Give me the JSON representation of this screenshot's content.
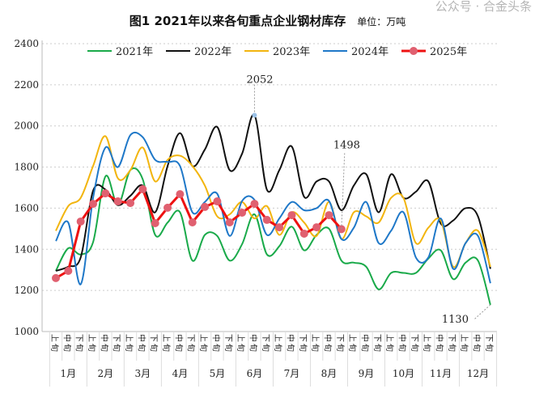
{
  "chart_data": {
    "type": "line",
    "title": "图1  2021年以来各旬重点企业钢材库存",
    "unit": "单位：万吨",
    "ylim": [
      1000,
      2400
    ],
    "yticks": [
      1000,
      1200,
      1400,
      1600,
      1800,
      2000,
      2200,
      2400
    ],
    "grid": "horizontal dotted",
    "legend": "top",
    "months": [
      "1月",
      "2月",
      "3月",
      "4月",
      "5月",
      "6月",
      "7月",
      "8月",
      "9月",
      "10月",
      "11月",
      "12月"
    ],
    "periods": [
      "上旬",
      "中旬",
      "下旬"
    ],
    "series": [
      {
        "name": "2021年",
        "color": "#1aaa4a",
        "values": [
          1295,
          1405,
          1375,
          1435,
          1755,
          1615,
          1785,
          1740,
          1470,
          1530,
          1580,
          1345,
          1470,
          1465,
          1345,
          1425,
          1570,
          1375,
          1415,
          1510,
          1395,
          1470,
          1500,
          1345,
          1335,
          1315,
          1205,
          1285,
          1285,
          1285,
          1355,
          1395,
          1255,
          1335,
          1345,
          1130
        ]
      },
      {
        "name": "2022年",
        "color": "#111111",
        "values": [
          1295,
          1315,
          1360,
          1685,
          1690,
          1615,
          1660,
          1710,
          1580,
          1805,
          1965,
          1805,
          1885,
          1995,
          1785,
          1865,
          2052,
          1690,
          1785,
          1900,
          1655,
          1730,
          1730,
          1590,
          1710,
          1765,
          1580,
          1765,
          1650,
          1680,
          1730,
          1525,
          1540,
          1600,
          1560,
          1305
        ]
      },
      {
        "name": "2023年",
        "color": "#f2b50f",
        "values": [
          1490,
          1610,
          1650,
          1805,
          1950,
          1745,
          1785,
          1895,
          1730,
          1835,
          1855,
          1805,
          1710,
          1560,
          1570,
          1630,
          1550,
          1610,
          1470,
          1580,
          1530,
          1465,
          1630,
          1450,
          1580,
          1560,
          1530,
          1650,
          1650,
          1430,
          1505,
          1540,
          1315,
          1430,
          1490,
          1315
        ]
      },
      {
        "name": "2024年",
        "color": "#1f78c8",
        "values": [
          1440,
          1530,
          1230,
          1650,
          1895,
          1800,
          1955,
          1945,
          1835,
          1825,
          1805,
          1580,
          1630,
          1670,
          1465,
          1635,
          1640,
          1470,
          1550,
          1630,
          1590,
          1600,
          1635,
          1450,
          1505,
          1630,
          1430,
          1490,
          1580,
          1360,
          1360,
          1550,
          1305,
          1430,
          1465,
          1235
        ]
      },
      {
        "name": "2025年",
        "color": "#ee1111",
        "marker": "#e06070",
        "values": [
          1260,
          1295,
          1535,
          1621,
          1672,
          1633,
          1625,
          1692,
          1527,
          1602,
          1668,
          1531,
          1606,
          1633,
          1531,
          1578,
          1621,
          1543,
          1507,
          1566,
          1476,
          1507,
          1566,
          1498
        ]
      }
    ],
    "annotations": [
      {
        "text": "2052",
        "series": "2022年",
        "index": 16
      },
      {
        "text": "1498",
        "series": "2025年",
        "index": 23
      },
      {
        "text": "1130",
        "series": "2021年",
        "index": 35
      }
    ]
  },
  "watermark": "公众号 · 合金头条"
}
